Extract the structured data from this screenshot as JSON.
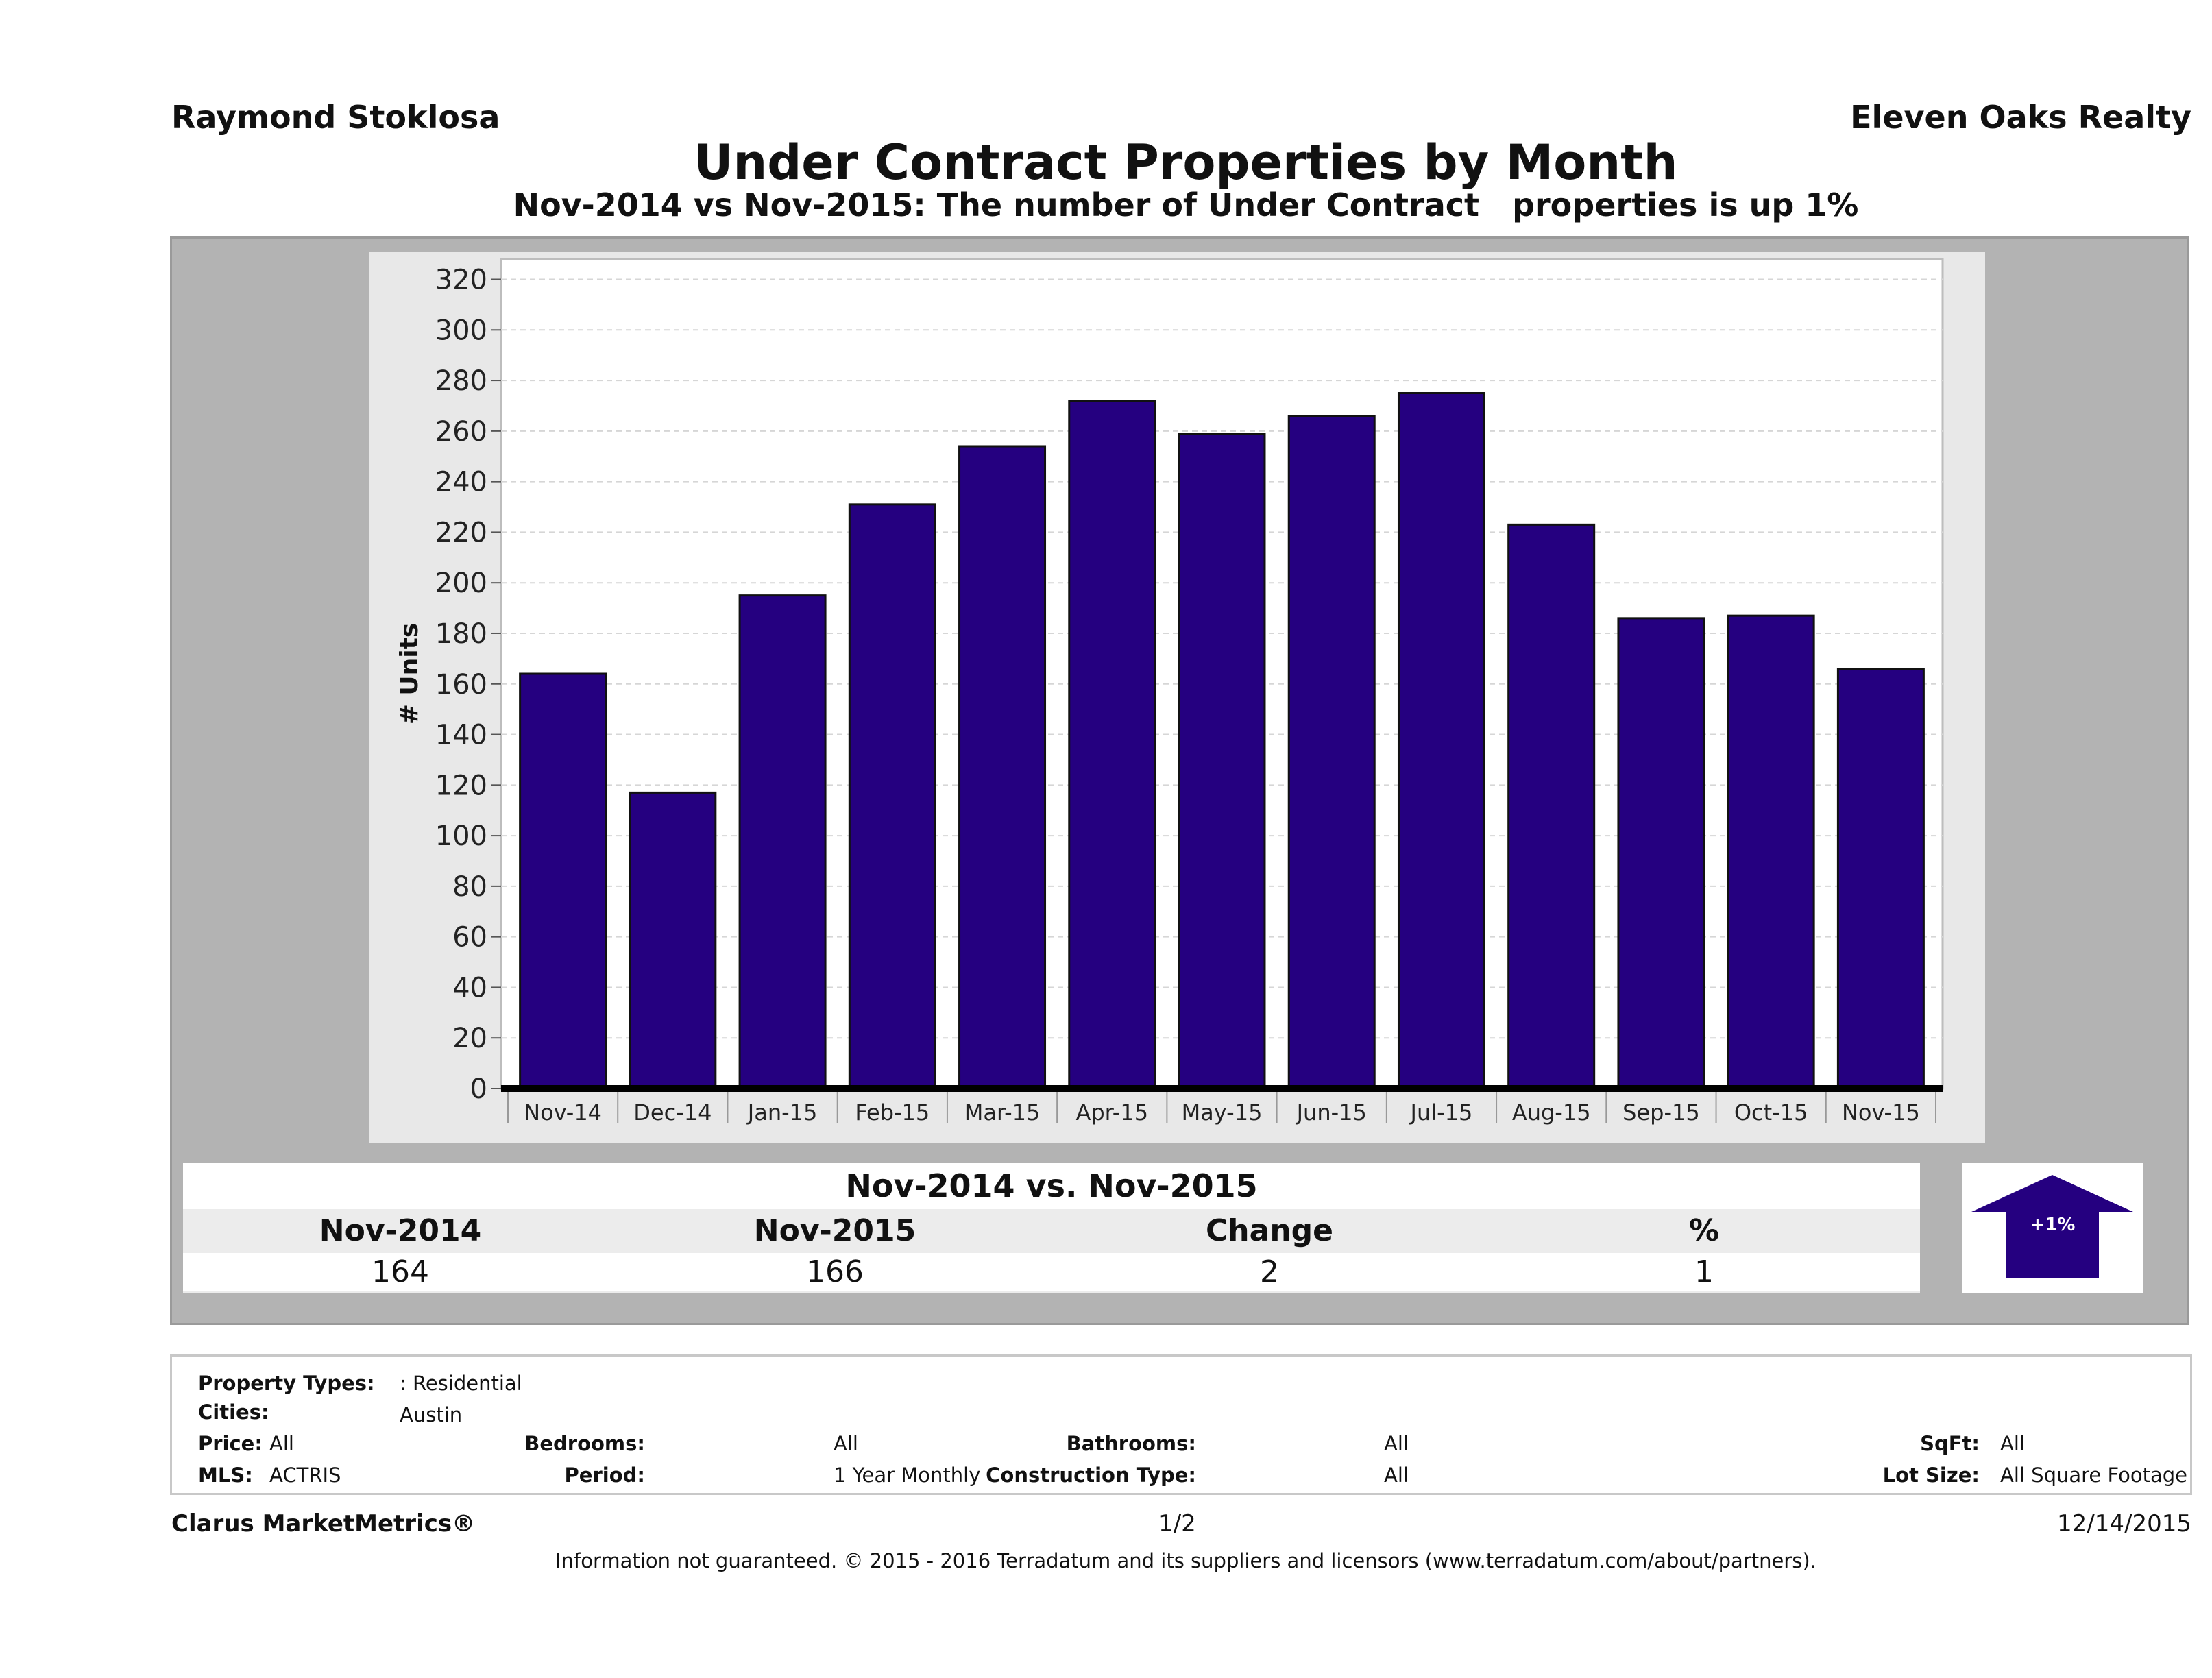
{
  "header": {
    "agent": "Raymond Stoklosa",
    "brokerage": "Eleven Oaks Realty",
    "title": "Under Contract Properties by Month",
    "subtitle": "Nov-2014 vs Nov-2015: The number of Under Contract   properties is up 1%"
  },
  "chart_data": {
    "type": "bar",
    "categories": [
      "Nov-14",
      "Dec-14",
      "Jan-15",
      "Feb-15",
      "Mar-15",
      "Apr-15",
      "May-15",
      "Jun-15",
      "Jul-15",
      "Aug-15",
      "Sep-15",
      "Oct-15",
      "Nov-15"
    ],
    "values": [
      164,
      117,
      195,
      231,
      254,
      272,
      259,
      266,
      275,
      223,
      186,
      187,
      166
    ],
    "ylabel": "# Units",
    "ylim": [
      0,
      320
    ],
    "yticks": [
      0,
      20,
      40,
      60,
      80,
      100,
      120,
      140,
      160,
      180,
      200,
      220,
      240,
      260,
      280,
      300,
      320
    ],
    "grid": true,
    "bar_color": "#250080"
  },
  "summary": {
    "title": "Nov-2014 vs. Nov-2015",
    "headers": [
      "Nov-2014",
      "Nov-2015",
      "Change",
      "%"
    ],
    "values": [
      "164",
      "166",
      "2",
      "1"
    ],
    "badge": "+1%",
    "badge_color": "#250080"
  },
  "criteria": {
    "property_types_label": "Property Types:",
    "property_types_value": ": Residential",
    "cities_label": "Cities:",
    "cities_value": "Austin",
    "price_label": "Price:",
    "price_value": "All",
    "mls_label": "MLS:",
    "mls_value": "ACTRIS",
    "bedrooms_label": "Bedrooms:",
    "bedrooms_value": "All",
    "period_label": "Period:",
    "period_value": "1 Year Monthly",
    "bathrooms_label": "Bathrooms:",
    "bathrooms_value": "All",
    "construction_label": "Construction Type:",
    "construction_value": "All",
    "sqft_label": "SqFt:",
    "sqft_value": "All",
    "lot_size_label": "Lot Size:",
    "lot_size_value": "All Square Footage"
  },
  "footer": {
    "brand": "Clarus MarketMetrics®",
    "page": "1/2",
    "date": "12/14/2015",
    "disclaimer": "Information not guaranteed. © 2015 - 2016 Terradatum and its suppliers and licensors (www.terradatum.com/about/partners)."
  }
}
